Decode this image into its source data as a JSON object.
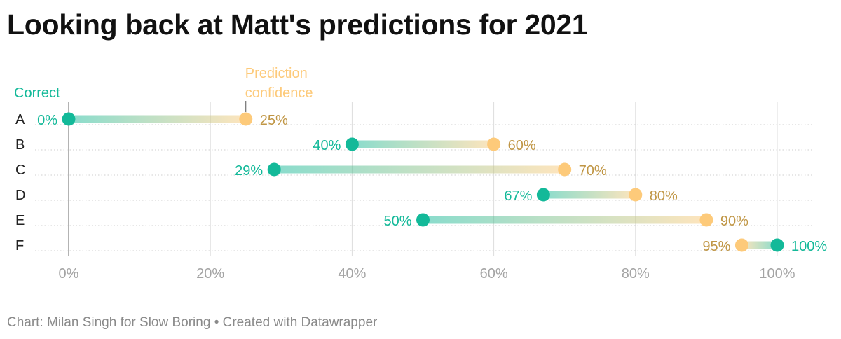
{
  "title": "Looking back at Matt's predictions for 2021",
  "footer": "Chart: Milan Singh for Slow Boring • Created with Datawrapper",
  "colors": {
    "correct": "#13b999",
    "confidence": "#fdca7a",
    "confidence_text": "#c09645",
    "grid": "#dddddd",
    "tick": "#a4a4a4"
  },
  "chart_data": {
    "type": "dot-range",
    "categories": [
      "A",
      "B",
      "C",
      "D",
      "E",
      "F"
    ],
    "series": [
      {
        "name": "Correct",
        "values": [
          0,
          40,
          29,
          67,
          50,
          100
        ]
      },
      {
        "name": "Prediction confidence",
        "values": [
          25,
          60,
          70,
          80,
          90,
          95
        ]
      }
    ],
    "legend": {
      "correct": "Correct",
      "confidence": [
        "Prediction",
        "confidence"
      ]
    },
    "value_labels": {
      "correct": [
        "0%",
        "40%",
        "29%",
        "67%",
        "50%",
        "100%"
      ],
      "confidence": [
        "25%",
        "60%",
        "70%",
        "80%",
        "90%",
        "95%"
      ]
    },
    "x_ticks": [
      0,
      20,
      40,
      60,
      80,
      100
    ],
    "x_tick_labels": [
      "0%",
      "20%",
      "40%",
      "60%",
      "80%",
      "100%"
    ],
    "xlim": [
      0,
      100
    ],
    "grid": true
  }
}
